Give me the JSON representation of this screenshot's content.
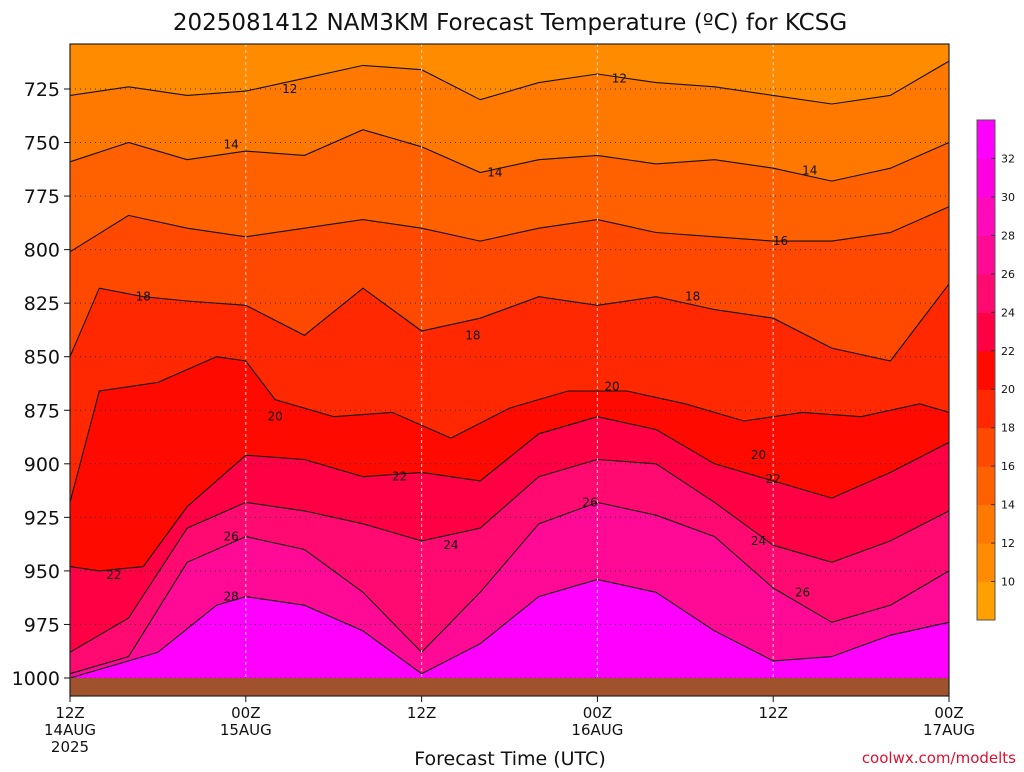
{
  "chart_data": {
    "type": "area",
    "title": "2025081412 NAM3KM Forecast Temperature (ºC) for KCSG",
    "xlabel": "Forecast Time (UTC)",
    "ylabel": "",
    "credit": "coolwx.com/modelts",
    "x_ticks": [
      {
        "hours": 0,
        "line1": "12Z",
        "line2": "14AUG",
        "line3": "2025"
      },
      {
        "hours": 12,
        "line1": "00Z",
        "line2": "15AUG",
        "line3": ""
      },
      {
        "hours": 24,
        "line1": "12Z",
        "line2": "",
        "line3": ""
      },
      {
        "hours": 36,
        "line1": "00Z",
        "line2": "16AUG",
        "line3": ""
      },
      {
        "hours": 48,
        "line1": "12Z",
        "line2": "",
        "line3": ""
      },
      {
        "hours": 60,
        "line1": "00Z",
        "line2": "17AUG",
        "line3": ""
      }
    ],
    "xlim": [
      0,
      60
    ],
    "y_ticks": [
      725,
      750,
      775,
      800,
      825,
      850,
      875,
      900,
      925,
      950,
      975,
      1000
    ],
    "ylim": [
      704,
      1000
    ],
    "y_scale": "pressure (hPa), inverted",
    "colorbar": {
      "ticks": [
        10,
        12,
        14,
        16,
        18,
        20,
        22,
        24,
        26,
        28,
        30,
        32
      ],
      "colors": [
        "#ffa000",
        "#ff8c00",
        "#ff7800",
        "#ff6000",
        "#ff4800",
        "#ff2800",
        "#ff0a00",
        "#ff0045",
        "#ff0a70",
        "#ff0a97",
        "#ff0abb",
        "#ff00e0",
        "#ff00ff"
      ]
    },
    "series": [
      {
        "level": 12,
        "label_pos": [
          [
            15,
            725
          ],
          [
            37.5,
            720
          ]
        ],
        "values": [
          [
            0,
            728
          ],
          [
            4,
            724
          ],
          [
            8,
            728
          ],
          [
            12,
            726
          ],
          [
            16,
            720
          ],
          [
            20,
            714
          ],
          [
            24,
            716
          ],
          [
            28,
            730
          ],
          [
            32,
            722
          ],
          [
            36,
            718
          ],
          [
            40,
            722
          ],
          [
            44,
            724
          ],
          [
            48,
            728
          ],
          [
            52,
            732
          ],
          [
            56,
            728
          ],
          [
            60,
            712
          ]
        ]
      },
      {
        "level": 14,
        "label_pos": [
          [
            11,
            751
          ],
          [
            29,
            764
          ],
          [
            50.5,
            763
          ]
        ],
        "values": [
          [
            0,
            759
          ],
          [
            4,
            750
          ],
          [
            8,
            758
          ],
          [
            12,
            754
          ],
          [
            16,
            756
          ],
          [
            20,
            744
          ],
          [
            24,
            752
          ],
          [
            28,
            764
          ],
          [
            32,
            758
          ],
          [
            36,
            756
          ],
          [
            40,
            760
          ],
          [
            44,
            758
          ],
          [
            48,
            762
          ],
          [
            52,
            768
          ],
          [
            56,
            762
          ],
          [
            60,
            750
          ]
        ]
      },
      {
        "level": 16,
        "label_pos": [
          [
            48.5,
            796
          ]
        ],
        "values": [
          [
            0,
            801
          ],
          [
            4,
            784
          ],
          [
            8,
            790
          ],
          [
            12,
            794
          ],
          [
            16,
            790
          ],
          [
            20,
            786
          ],
          [
            24,
            790
          ],
          [
            28,
            796
          ],
          [
            32,
            790
          ],
          [
            36,
            786
          ],
          [
            40,
            792
          ],
          [
            44,
            794
          ],
          [
            48,
            796
          ],
          [
            52,
            796
          ],
          [
            56,
            792
          ],
          [
            60,
            780
          ]
        ]
      },
      {
        "level": 18,
        "label_pos": [
          [
            5,
            822
          ],
          [
            27.5,
            840
          ],
          [
            42.5,
            822
          ]
        ],
        "values": [
          [
            0,
            850
          ],
          [
            2,
            818
          ],
          [
            5,
            822
          ],
          [
            8,
            824
          ],
          [
            12,
            826
          ],
          [
            16,
            840
          ],
          [
            20,
            818
          ],
          [
            24,
            838
          ],
          [
            28,
            832
          ],
          [
            32,
            822
          ],
          [
            36,
            826
          ],
          [
            40,
            822
          ],
          [
            44,
            828
          ],
          [
            48,
            832
          ],
          [
            52,
            846
          ],
          [
            56,
            852
          ],
          [
            60,
            816
          ]
        ]
      },
      {
        "level": 20,
        "label_pos": [
          [
            14,
            878
          ],
          [
            37,
            864
          ],
          [
            47,
            896
          ]
        ],
        "values": [
          [
            0,
            918
          ],
          [
            2,
            866
          ],
          [
            6,
            862
          ],
          [
            10,
            850
          ],
          [
            12,
            852
          ],
          [
            14,
            870
          ],
          [
            18,
            878
          ],
          [
            22,
            876
          ],
          [
            26,
            888
          ],
          [
            30,
            874
          ],
          [
            34,
            866
          ],
          [
            38,
            866
          ],
          [
            42,
            872
          ],
          [
            46,
            880
          ],
          [
            50,
            876
          ],
          [
            54,
            878
          ],
          [
            58,
            872
          ],
          [
            60,
            876
          ]
        ]
      },
      {
        "level": 22,
        "label_pos": [
          [
            3,
            952
          ],
          [
            22.5,
            906
          ],
          [
            48,
            907
          ]
        ],
        "values": [
          [
            0,
            948
          ],
          [
            2,
            950
          ],
          [
            5,
            948
          ],
          [
            8,
            920
          ],
          [
            12,
            896
          ],
          [
            16,
            898
          ],
          [
            20,
            906
          ],
          [
            24,
            904
          ],
          [
            28,
            908
          ],
          [
            32,
            886
          ],
          [
            36,
            878
          ],
          [
            40,
            884
          ],
          [
            44,
            900
          ],
          [
            48,
            908
          ],
          [
            52,
            916
          ],
          [
            56,
            904
          ],
          [
            60,
            890
          ]
        ]
      },
      {
        "level": 24,
        "label_pos": [
          [
            26,
            938
          ],
          [
            47,
            936
          ]
        ],
        "values": [
          [
            0,
            988
          ],
          [
            4,
            972
          ],
          [
            8,
            930
          ],
          [
            12,
            918
          ],
          [
            16,
            922
          ],
          [
            20,
            928
          ],
          [
            24,
            936
          ],
          [
            28,
            930
          ],
          [
            32,
            906
          ],
          [
            36,
            898
          ],
          [
            40,
            900
          ],
          [
            44,
            918
          ],
          [
            48,
            938
          ],
          [
            52,
            946
          ],
          [
            56,
            936
          ],
          [
            60,
            922
          ]
        ]
      },
      {
        "level": 26,
        "label_pos": [
          [
            11,
            934
          ],
          [
            35.5,
            918
          ],
          [
            50,
            960
          ]
        ],
        "values": [
          [
            0,
            998
          ],
          [
            4,
            990
          ],
          [
            8,
            946
          ],
          [
            12,
            934
          ],
          [
            16,
            940
          ],
          [
            20,
            960
          ],
          [
            24,
            988
          ],
          [
            28,
            960
          ],
          [
            32,
            928
          ],
          [
            36,
            918
          ],
          [
            40,
            924
          ],
          [
            44,
            934
          ],
          [
            48,
            958
          ],
          [
            52,
            974
          ],
          [
            56,
            966
          ],
          [
            60,
            950
          ]
        ]
      },
      {
        "level": 28,
        "label_pos": [
          [
            11,
            962
          ]
        ],
        "values": [
          [
            0,
            1000
          ],
          [
            6,
            988
          ],
          [
            10,
            966
          ],
          [
            12,
            962
          ],
          [
            16,
            966
          ],
          [
            20,
            978
          ],
          [
            24,
            998
          ],
          [
            28,
            984
          ],
          [
            32,
            962
          ],
          [
            36,
            954
          ],
          [
            40,
            960
          ],
          [
            44,
            978
          ],
          [
            48,
            992
          ],
          [
            52,
            990
          ],
          [
            56,
            980
          ],
          [
            60,
            974
          ]
        ]
      }
    ]
  }
}
